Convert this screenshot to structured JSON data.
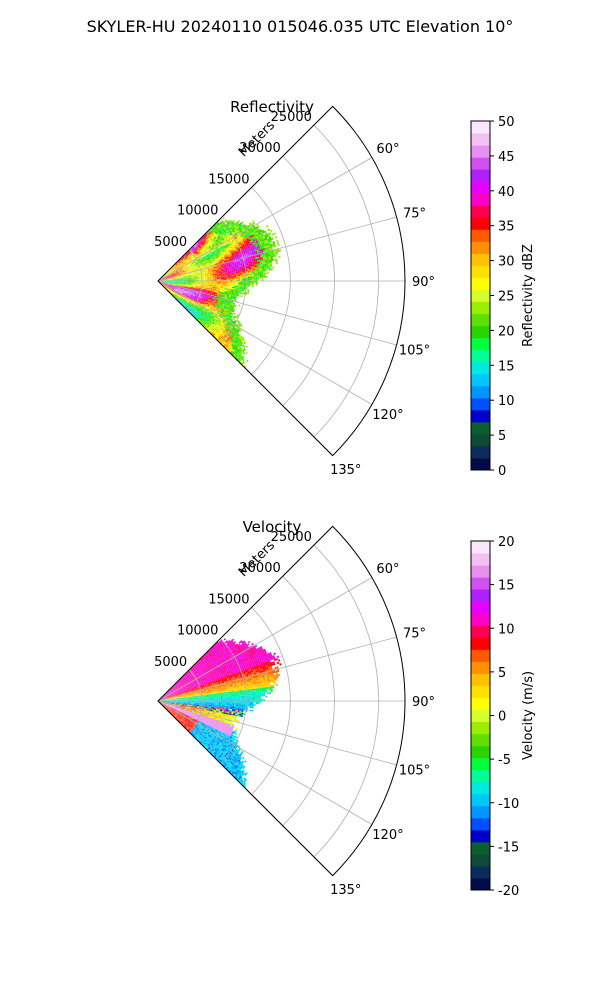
{
  "figure": {
    "suptitle": "SKYLER-HU  20240110  015046.035 UTC Elevation 10°"
  },
  "chart_data": [
    {
      "type": "polar-sector-heatmap",
      "title": "Reflectivity",
      "radial_label": "Meters",
      "theta_range_deg": [
        45,
        135
      ],
      "theta_zero": "north",
      "theta_direction": "clockwise",
      "r_max": 28000,
      "r_ticks": [
        5000,
        10000,
        15000,
        20000,
        25000
      ],
      "theta_ticks": [
        "60°",
        "75°",
        "90°",
        "105°",
        "120°",
        "135°"
      ],
      "theta_tick_values": [
        60,
        75,
        90,
        105,
        120,
        135
      ],
      "colorbar": {
        "label": "Reflectivity dBZ",
        "min": 0,
        "max": 50,
        "ticks": [
          0,
          5,
          10,
          15,
          20,
          25,
          30,
          35,
          40,
          45,
          50
        ]
      },
      "colors": [
        "#000b4a",
        "#0b2b5c",
        "#0d4a3a",
        "#0b5e2e",
        "#0000c8",
        "#0050ff",
        "#0096ff",
        "#00c8ff",
        "#00e8e0",
        "#00ff9a",
        "#00ff3c",
        "#2ad400",
        "#5fe000",
        "#9aef00",
        "#d4ff2a",
        "#ffff00",
        "#ffe000",
        "#ffc000",
        "#ff9000",
        "#ff5a00",
        "#ff0000",
        "#ff0050",
        "#ff00c8",
        "#e600ff",
        "#b020ff",
        "#d050f0",
        "#e890f0",
        "#f4c0f4",
        "#fce6fc"
      ],
      "observed_field": {
        "coverage_theta_deg": [
          45,
          135
        ],
        "max_range_m": 14000,
        "typical_range_dbz": [
          20,
          40
        ],
        "peak_dbz": 45
      }
    },
    {
      "type": "polar-sector-heatmap",
      "title": "Velocity",
      "radial_label": "Meters",
      "theta_range_deg": [
        45,
        135
      ],
      "theta_zero": "north",
      "theta_direction": "clockwise",
      "r_max": 28000,
      "r_ticks": [
        5000,
        10000,
        15000,
        20000,
        25000
      ],
      "theta_ticks": [
        "60°",
        "75°",
        "90°",
        "105°",
        "120°",
        "135°"
      ],
      "theta_tick_values": [
        60,
        75,
        90,
        105,
        120,
        135
      ],
      "colorbar": {
        "label": "Velocity (m/s)",
        "min": -20,
        "max": 20,
        "ticks": [
          -20,
          -15,
          -10,
          -5,
          0,
          5,
          10,
          15,
          20
        ]
      },
      "colors": [
        "#000b4a",
        "#0b2b5c",
        "#0d4a3a",
        "#0b5e2e",
        "#0000c8",
        "#0050ff",
        "#0096ff",
        "#00c8ff",
        "#00e8e0",
        "#00ff9a",
        "#00ff3c",
        "#2ad400",
        "#5fe000",
        "#9aef00",
        "#d4ff2a",
        "#ffff00",
        "#ffe000",
        "#ffc000",
        "#ff9000",
        "#ff5a00",
        "#ff0000",
        "#ff0050",
        "#ff00c8",
        "#e600ff",
        "#b020ff",
        "#d050f0",
        "#e890f0",
        "#f4c0f4",
        "#fce6fc"
      ],
      "observed_field": {
        "coverage_theta_deg": [
          45,
          135
        ],
        "max_range_m": 14000,
        "range_mps": [
          -15,
          15
        ]
      }
    }
  ]
}
